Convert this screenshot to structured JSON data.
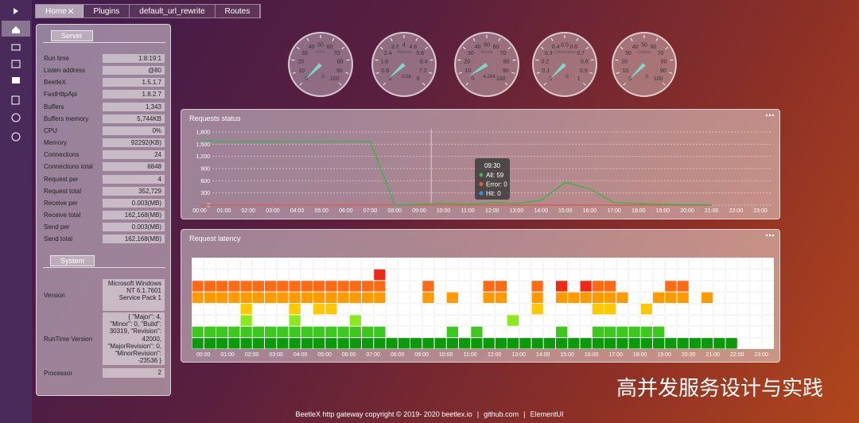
{
  "tabs": [
    "Home",
    "Plugins",
    "default_url_rewrite",
    "Routes"
  ],
  "server": {
    "title": "Server",
    "rows": [
      [
        "Run time",
        "1:8:19:1"
      ],
      [
        "Listen address",
        "@80"
      ],
      [
        "BeetleX",
        "1.5.1.7"
      ],
      [
        "FastHttpApi",
        "1.8.2.7"
      ],
      [
        "Buffers",
        "1,343"
      ],
      [
        "Buffers memory",
        "5,744KB"
      ],
      [
        "CPU",
        "0%"
      ],
      [
        "Memory",
        "92292(KB)"
      ],
      [
        "Connections",
        "24"
      ],
      [
        "Connections total",
        "6848"
      ],
      [
        "Request per",
        "4"
      ],
      [
        "Request total",
        "352,729"
      ],
      [
        "Receive per",
        "0.003(MB)"
      ],
      [
        "Receive total",
        "162,168(MB)"
      ],
      [
        "Send per",
        "0.003(MB)"
      ],
      [
        "Send total",
        "162,168(MB)"
      ]
    ]
  },
  "system": {
    "title": "System",
    "rows": [
      [
        "Version",
        "Microsoft Windows NT 6.1.7601 Service Pack 1"
      ],
      [
        "RunTime Version",
        "{ \"Major\": 4, \"Minor\": 0, \"Build\": 30319, \"Revision\": 42000, \"MajorRevision\": 0, \"MinorRevision\": -23536 }"
      ],
      [
        "Processor",
        "2"
      ]
    ]
  },
  "gauges": [
    {
      "name": "CPU",
      "ticks": [
        0,
        10,
        20,
        30,
        40,
        50,
        60,
        70,
        80,
        90,
        100
      ],
      "value": 0
    },
    {
      "name": "Memory",
      "ticks": [
        0,
        0.8,
        1.6,
        2.4,
        3.2,
        4,
        4.8,
        5.6,
        6.4,
        7.2,
        8
      ],
      "value": 0.08
    },
    {
      "name": "Reads",
      "ticks": [
        0,
        10,
        20,
        30,
        40,
        50,
        60,
        70,
        80,
        90,
        100
      ],
      "value": 4.204
    },
    {
      "name": "Connections",
      "ticks": [
        0,
        0.1,
        0.2,
        0.3,
        0.4,
        0.5,
        0.6,
        0.7,
        0.8,
        0.9,
        1
      ],
      "value": 0
    },
    {
      "name": "Caches",
      "ticks": [
        0,
        10,
        20,
        30,
        40,
        50,
        60,
        70,
        80,
        90,
        100
      ],
      "value": 0
    }
  ],
  "chart_data": [
    {
      "type": "line",
      "title": "Requests status",
      "categories": [
        "00:00",
        "01:00",
        "02:00",
        "03:00",
        "04:00",
        "05:00",
        "06:00",
        "07:00",
        "08:00",
        "09:00",
        "10:00",
        "11:00",
        "12:00",
        "13:00",
        "14:00",
        "15:00",
        "16:00",
        "17:00",
        "18:00",
        "19:00",
        "20:00",
        "21:00",
        "22:00",
        "23:00"
      ],
      "series": [
        {
          "name": "All",
          "color": "#3cb44b",
          "values": [
            1600,
            1560,
            1560,
            1560,
            1570,
            1570,
            1570,
            1560,
            0,
            20,
            50,
            20,
            60,
            40,
            120,
            560,
            400,
            60,
            40,
            20,
            10,
            10,
            null,
            null
          ]
        },
        {
          "name": "Error",
          "color": "#f05a3c",
          "values": [
            0,
            0,
            0,
            0,
            0,
            0,
            0,
            0,
            0,
            0,
            0,
            0,
            0,
            0,
            0,
            0,
            0,
            0,
            0,
            0,
            0,
            0,
            null,
            null
          ]
        },
        {
          "name": "Hit",
          "color": "#3c8cf0",
          "values": [
            0,
            0,
            0,
            0,
            0,
            0,
            0,
            0,
            0,
            0,
            0,
            0,
            0,
            0,
            0,
            0,
            0,
            0,
            0,
            0,
            0,
            0,
            null,
            null
          ]
        }
      ],
      "ylim": [
        0,
        1800
      ],
      "yticks": [
        0,
        300,
        600,
        900,
        {
          "value": 1200,
          "label": "1,200"
        },
        {
          "value": 1500,
          "label": "1,500"
        },
        {
          "value": 1800,
          "label": "1,800"
        }
      ],
      "grid": true,
      "tooltip": {
        "title": "09:30",
        "items": [
          "All: 59",
          "Error: 0",
          "Hit: 0"
        ]
      }
    },
    {
      "type": "heatmap",
      "title": "Request latency",
      "categories": [
        "00:00",
        "01:00",
        "02:00",
        "03:00",
        "04:00",
        "05:00",
        "06:00",
        "07:00",
        "08:00",
        "09:00",
        "10:00",
        "11:00",
        "12:00",
        "13:00",
        "14:00",
        "15:00",
        "16:00",
        "17:00",
        "18:00",
        "19:00",
        "20:00",
        "21:00",
        "22:00",
        "23:00"
      ],
      "colors": [
        "#ffffff",
        "#0a9a0a",
        "#3cc81e",
        "#8ee81e",
        "#ffc800",
        "#ff9a00",
        "#ff6a14",
        "#f02814"
      ],
      "cells": [
        [
          0,
          0,
          0,
          0,
          0,
          0,
          0,
          0,
          0,
          0,
          0,
          0,
          0,
          0,
          0,
          0,
          0,
          0,
          0,
          0,
          0,
          0,
          0,
          0,
          0,
          0,
          0,
          0,
          0,
          0,
          0,
          0,
          0,
          0,
          0,
          0,
          0,
          0,
          0,
          0,
          0,
          0,
          0,
          0,
          0,
          0,
          0,
          0
        ],
        [
          0,
          0,
          0,
          0,
          0,
          0,
          0,
          0,
          0,
          0,
          0,
          0,
          0,
          0,
          0,
          7,
          0,
          0,
          0,
          0,
          0,
          0,
          0,
          0,
          0,
          0,
          0,
          0,
          0,
          0,
          0,
          0,
          0,
          0,
          0,
          0,
          0,
          0,
          0,
          0,
          0,
          0,
          0,
          0,
          0,
          0,
          0,
          0
        ],
        [
          6,
          6,
          6,
          6,
          6,
          6,
          6,
          6,
          6,
          6,
          6,
          6,
          6,
          6,
          6,
          6,
          0,
          0,
          0,
          6,
          0,
          0,
          0,
          0,
          6,
          6,
          0,
          0,
          6,
          0,
          7,
          0,
          7,
          6,
          6,
          0,
          0,
          0,
          0,
          6,
          6,
          0,
          0,
          0,
          0,
          0,
          0,
          0
        ],
        [
          5,
          5,
          5,
          5,
          5,
          5,
          5,
          5,
          5,
          5,
          5,
          5,
          5,
          5,
          5,
          5,
          0,
          0,
          0,
          5,
          0,
          5,
          0,
          0,
          5,
          5,
          0,
          0,
          5,
          0,
          5,
          5,
          5,
          5,
          5,
          5,
          0,
          0,
          5,
          5,
          5,
          0,
          5,
          0,
          0,
          0,
          0,
          0
        ],
        [
          0,
          0,
          0,
          0,
          4,
          0,
          0,
          0,
          4,
          0,
          4,
          4,
          0,
          0,
          0,
          0,
          0,
          0,
          0,
          0,
          0,
          0,
          0,
          0,
          0,
          0,
          0,
          0,
          4,
          0,
          0,
          0,
          0,
          4,
          4,
          0,
          0,
          4,
          0,
          0,
          0,
          0,
          0,
          0,
          0,
          0,
          0,
          0
        ],
        [
          0,
          0,
          0,
          0,
          3,
          0,
          0,
          0,
          3,
          0,
          0,
          0,
          0,
          3,
          0,
          0,
          0,
          0,
          0,
          0,
          0,
          0,
          0,
          0,
          0,
          0,
          3,
          0,
          0,
          0,
          0,
          0,
          0,
          0,
          0,
          0,
          0,
          0,
          0,
          0,
          0,
          0,
          0,
          0,
          0,
          0,
          0,
          0
        ],
        [
          2,
          2,
          2,
          2,
          2,
          2,
          2,
          2,
          2,
          2,
          2,
          2,
          2,
          2,
          2,
          2,
          0,
          0,
          0,
          0,
          0,
          2,
          0,
          2,
          0,
          0,
          0,
          0,
          0,
          0,
          2,
          0,
          0,
          2,
          2,
          2,
          2,
          2,
          2,
          0,
          0,
          0,
          0,
          0,
          0,
          0,
          0,
          0
        ],
        [
          1,
          1,
          1,
          1,
          1,
          1,
          1,
          1,
          1,
          1,
          1,
          1,
          1,
          1,
          1,
          1,
          1,
          1,
          1,
          1,
          1,
          1,
          1,
          1,
          1,
          1,
          1,
          1,
          1,
          1,
          1,
          1,
          1,
          1,
          1,
          1,
          1,
          1,
          1,
          1,
          1,
          1,
          1,
          1,
          1,
          0,
          0,
          0
        ]
      ]
    }
  ],
  "footer": [
    "BeetleX http gateway copyright © 2019- 2020 beetlex.io",
    "|",
    "github.com",
    "|",
    "ElementUI"
  ],
  "watermark": "高并发服务设计与实践"
}
